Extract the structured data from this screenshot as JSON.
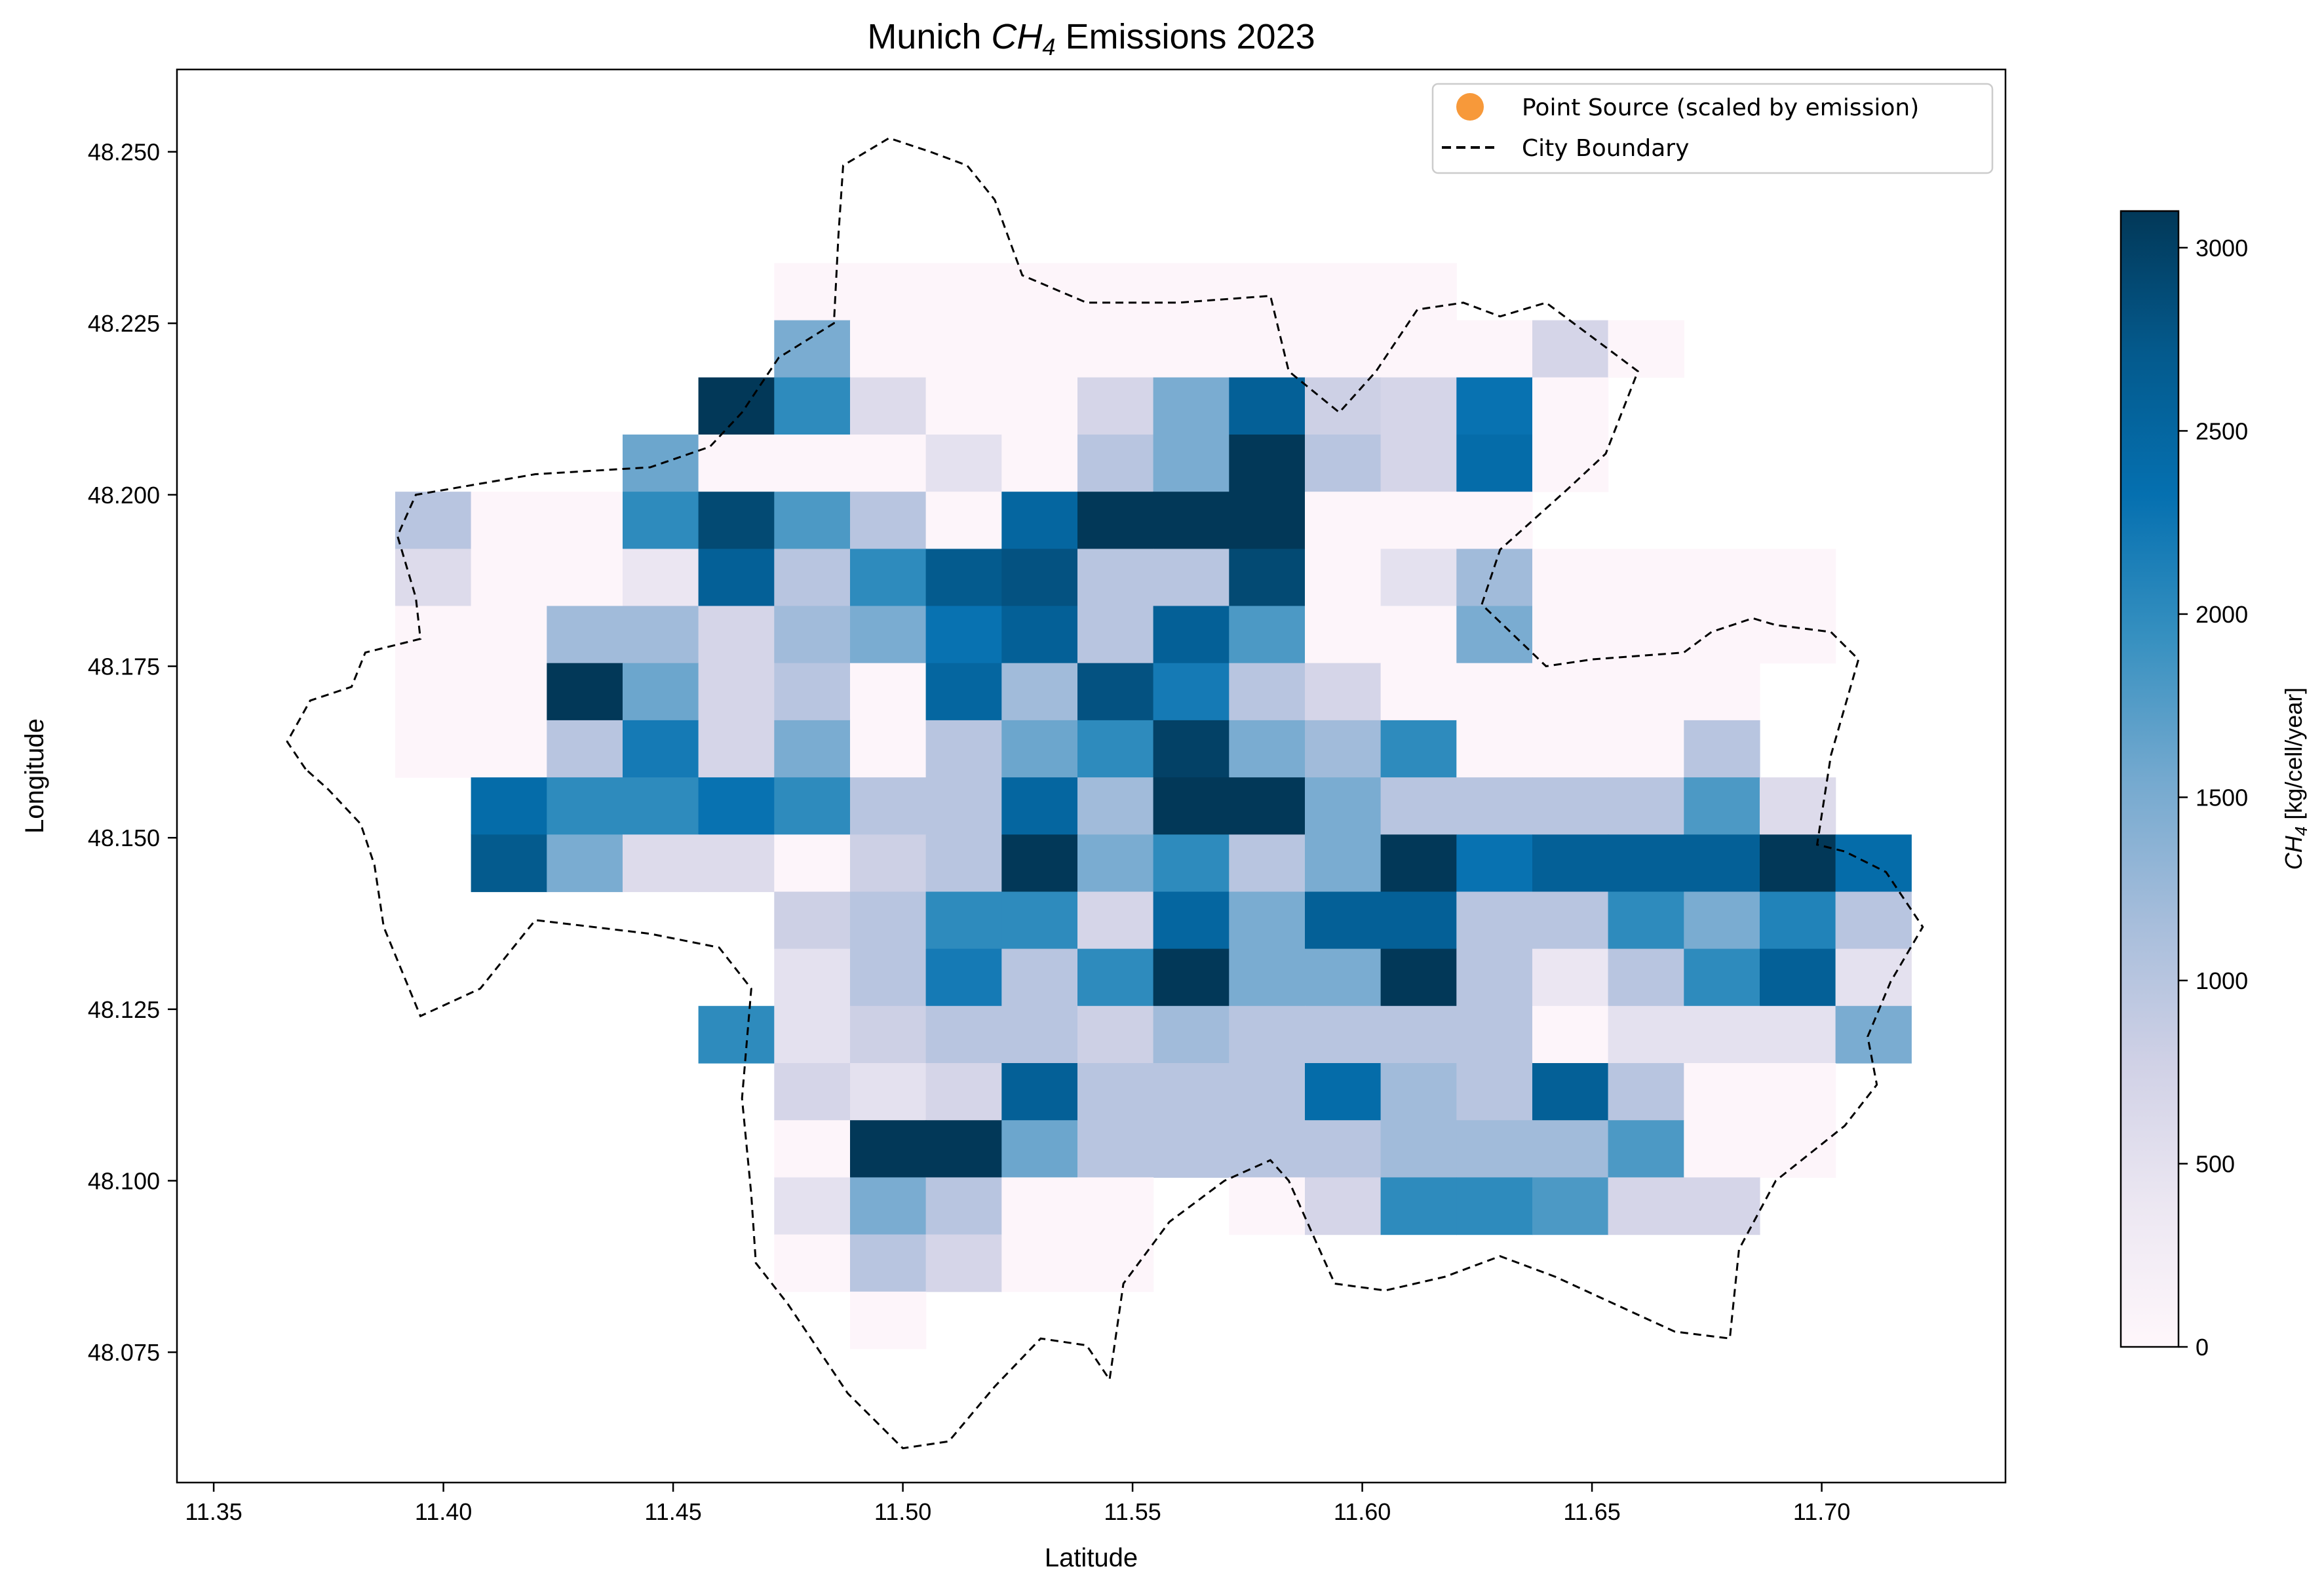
{
  "chart_data": {
    "type": "heatmap",
    "title": "Munich CH4 Emissions 2023",
    "title_parts": {
      "prefix": "Munich ",
      "species": "CH",
      "subscript": "4",
      "suffix": " Emissions 2023"
    },
    "xlabel": "Latitude",
    "ylabel": "Longitude",
    "xlim": [
      11.342,
      11.74
    ],
    "ylim": [
      48.056,
      48.262
    ],
    "xticks": [
      11.35,
      11.4,
      11.45,
      11.5,
      11.55,
      11.6,
      11.65,
      11.7
    ],
    "xtick_labels": [
      "11.35",
      "11.40",
      "11.45",
      "11.50",
      "11.55",
      "11.60",
      "11.65",
      "11.70"
    ],
    "yticks": [
      48.075,
      48.1,
      48.125,
      48.15,
      48.175,
      48.2,
      48.225,
      48.25
    ],
    "ytick_labels": [
      "48.075",
      "48.100",
      "48.125",
      "48.150",
      "48.175",
      "48.200",
      "48.225",
      "48.250"
    ],
    "grid": false,
    "legend": {
      "placement": "top-right",
      "entries": [
        {
          "label": "Point Source (scaled by emission)",
          "marker": "circle",
          "color": "#f7993a"
        },
        {
          "label": "City Boundary",
          "marker": "dashed-line",
          "color": "#000000"
        }
      ]
    },
    "colorbar": {
      "label_species": "CH",
      "label_subscript": "4",
      "label_units": " [kg/cell/year]",
      "min": 0,
      "max": 3100,
      "ticks": [
        0,
        500,
        1000,
        1500,
        2000,
        2500,
        3000
      ],
      "tick_labels": [
        "0",
        "500",
        "1000",
        "1500",
        "2000",
        "2500",
        "3000"
      ],
      "colormap": "PuBu",
      "stops": [
        "#fff7fb",
        "#ece7f2",
        "#d0d1e6",
        "#a6bddb",
        "#74a9cf",
        "#3690c0",
        "#0570b0",
        "#045a8d",
        "#023858"
      ]
    },
    "grid_cells": {
      "x0": 11.3895,
      "y0": 48.0755,
      "dx": 0.0165,
      "dy": 0.00833,
      "nx": 20,
      "ny": 20,
      "row_order": "north-to-south",
      "values": [
        [
          null,
          null,
          null,
          null,
          null,
          null,
          null,
          null,
          null,
          null,
          null,
          null,
          null,
          null,
          null,
          null,
          null,
          null,
          null,
          null
        ],
        [
          null,
          null,
          null,
          null,
          null,
          50,
          50,
          50,
          50,
          50,
          50,
          50,
          50,
          50,
          null,
          null,
          null,
          null,
          null,
          null
        ],
        [
          null,
          null,
          null,
          null,
          null,
          1500,
          50,
          50,
          50,
          50,
          50,
          50,
          50,
          50,
          50,
          700,
          50,
          null,
          null,
          null
        ],
        [
          null,
          null,
          null,
          null,
          3100,
          2000,
          600,
          50,
          50,
          700,
          1500,
          2600,
          800,
          700,
          2300,
          50,
          null,
          null,
          null,
          null
        ],
        [
          null,
          null,
          null,
          1600,
          50,
          50,
          50,
          500,
          50,
          1000,
          1500,
          3100,
          1000,
          700,
          2400,
          50,
          null,
          null,
          null,
          null
        ],
        [
          1000,
          50,
          50,
          2000,
          2900,
          1800,
          1000,
          50,
          2500,
          3100,
          3100,
          3100,
          50,
          50,
          50,
          null,
          null,
          null,
          null,
          null
        ],
        [
          600,
          50,
          50,
          400,
          2600,
          1000,
          2000,
          2700,
          2800,
          1000,
          1000,
          2900,
          50,
          500,
          1200,
          50,
          50,
          50,
          50,
          null
        ],
        [
          50,
          50,
          1200,
          1200,
          700,
          1200,
          1500,
          2300,
          2600,
          1000,
          2600,
          1800,
          50,
          50,
          1500,
          50,
          50,
          50,
          50,
          null
        ],
        [
          50,
          50,
          3100,
          1600,
          700,
          1000,
          50,
          2500,
          1200,
          2800,
          2200,
          1000,
          700,
          50,
          50,
          50,
          50,
          50,
          null,
          null
        ],
        [
          50,
          50,
          1000,
          2200,
          700,
          1500,
          50,
          1000,
          1600,
          2000,
          3000,
          1500,
          1200,
          2000,
          50,
          50,
          50,
          1000,
          null,
          null
        ],
        [
          null,
          2400,
          2000,
          2000,
          2300,
          2000,
          1000,
          1000,
          2500,
          1200,
          3100,
          3100,
          1500,
          1000,
          1000,
          1000,
          1000,
          1800,
          600,
          null
        ],
        [
          null,
          2700,
          1500,
          600,
          600,
          50,
          800,
          1000,
          3100,
          1500,
          2000,
          1000,
          1500,
          3100,
          2300,
          2600,
          2600,
          2600,
          3100,
          2400
        ],
        [
          null,
          null,
          null,
          null,
          null,
          800,
          1000,
          2000,
          2000,
          700,
          2500,
          1500,
          2600,
          2600,
          1000,
          1000,
          2000,
          1500,
          2100,
          1000
        ],
        [
          null,
          null,
          null,
          null,
          null,
          500,
          1000,
          2200,
          1000,
          2000,
          3100,
          1500,
          1500,
          3100,
          1000,
          400,
          1000,
          2000,
          2600,
          500
        ],
        [
          null,
          null,
          null,
          null,
          2000,
          500,
          800,
          1000,
          1000,
          800,
          1200,
          1000,
          1000,
          1000,
          1000,
          50,
          500,
          500,
          500,
          1500
        ],
        [
          null,
          null,
          null,
          null,
          null,
          700,
          500,
          700,
          2600,
          1000,
          1000,
          1000,
          2400,
          1200,
          1000,
          2600,
          1000,
          50,
          50,
          null
        ],
        [
          null,
          null,
          null,
          null,
          null,
          50,
          3100,
          3100,
          1600,
          1000,
          1000,
          1000,
          1000,
          1200,
          1200,
          1200,
          1800,
          50,
          50,
          null
        ],
        [
          null,
          null,
          null,
          null,
          null,
          500,
          1500,
          1000,
          50,
          50,
          null,
          50,
          700,
          2000,
          2000,
          1800,
          700,
          700,
          null,
          null
        ],
        [
          null,
          null,
          null,
          null,
          null,
          50,
          1000,
          700,
          50,
          50,
          null,
          null,
          null,
          null,
          null,
          null,
          null,
          null,
          null,
          null
        ],
        [
          null,
          null,
          null,
          null,
          null,
          null,
          50,
          null,
          null,
          null,
          null,
          null,
          null,
          null,
          null,
          null,
          null,
          null,
          null,
          null
        ]
      ]
    },
    "city_boundary": [
      [
        11.37,
        48.16
      ],
      [
        11.366,
        48.164
      ],
      [
        11.371,
        48.17
      ],
      [
        11.38,
        48.172
      ],
      [
        11.383,
        48.177
      ],
      [
        11.395,
        48.179
      ],
      [
        11.394,
        48.185
      ],
      [
        11.39,
        48.194
      ],
      [
        11.394,
        48.2
      ],
      [
        11.42,
        48.203
      ],
      [
        11.445,
        48.204
      ],
      [
        11.458,
        48.207
      ],
      [
        11.465,
        48.212
      ],
      [
        11.473,
        48.22
      ],
      [
        11.485,
        48.225
      ],
      [
        11.486,
        48.238
      ],
      [
        11.487,
        48.248
      ],
      [
        11.497,
        48.252
      ],
      [
        11.506,
        48.25
      ],
      [
        11.514,
        48.248
      ],
      [
        11.52,
        48.243
      ],
      [
        11.526,
        48.232
      ],
      [
        11.54,
        48.228
      ],
      [
        11.56,
        48.228
      ],
      [
        11.58,
        48.229
      ],
      [
        11.584,
        48.218
      ],
      [
        11.595,
        48.212
      ],
      [
        11.603,
        48.218
      ],
      [
        11.612,
        48.227
      ],
      [
        11.622,
        48.228
      ],
      [
        11.63,
        48.226
      ],
      [
        11.64,
        48.228
      ],
      [
        11.66,
        48.218
      ],
      [
        11.653,
        48.206
      ],
      [
        11.645,
        48.201
      ],
      [
        11.63,
        48.192
      ],
      [
        11.626,
        48.184
      ],
      [
        11.64,
        48.175
      ],
      [
        11.65,
        48.176
      ],
      [
        11.67,
        48.177
      ],
      [
        11.676,
        48.18
      ],
      [
        11.685,
        48.182
      ],
      [
        11.69,
        48.181
      ],
      [
        11.702,
        48.18
      ],
      [
        11.708,
        48.176
      ],
      [
        11.702,
        48.162
      ],
      [
        11.699,
        48.149
      ],
      [
        11.705,
        48.148
      ],
      [
        11.714,
        48.145
      ],
      [
        11.722,
        48.137
      ],
      [
        11.715,
        48.129
      ],
      [
        11.71,
        48.121
      ],
      [
        11.712,
        48.114
      ],
      [
        11.705,
        48.108
      ],
      [
        11.69,
        48.1
      ],
      [
        11.682,
        48.09
      ],
      [
        11.68,
        48.077
      ],
      [
        11.668,
        48.078
      ],
      [
        11.655,
        48.082
      ],
      [
        11.642,
        48.086
      ],
      [
        11.63,
        48.089
      ],
      [
        11.618,
        48.086
      ],
      [
        11.605,
        48.084
      ],
      [
        11.594,
        48.085
      ],
      [
        11.584,
        48.1
      ],
      [
        11.58,
        48.103
      ],
      [
        11.57,
        48.1
      ],
      [
        11.558,
        48.094
      ],
      [
        11.548,
        48.085
      ],
      [
        11.545,
        48.071
      ],
      [
        11.54,
        48.076
      ],
      [
        11.53,
        48.077
      ],
      [
        11.52,
        48.07
      ],
      [
        11.51,
        48.062
      ],
      [
        11.5,
        48.061
      ],
      [
        11.488,
        48.069
      ],
      [
        11.475,
        48.082
      ],
      [
        11.468,
        48.088
      ],
      [
        11.467,
        48.098
      ],
      [
        11.465,
        48.112
      ],
      [
        11.467,
        48.128
      ],
      [
        11.46,
        48.134
      ],
      [
        11.445,
        48.136
      ],
      [
        11.42,
        48.138
      ],
      [
        11.408,
        48.128
      ],
      [
        11.395,
        48.124
      ],
      [
        11.387,
        48.137
      ],
      [
        11.385,
        48.146
      ],
      [
        11.382,
        48.152
      ],
      [
        11.375,
        48.157
      ],
      [
        11.37,
        48.16
      ]
    ]
  }
}
